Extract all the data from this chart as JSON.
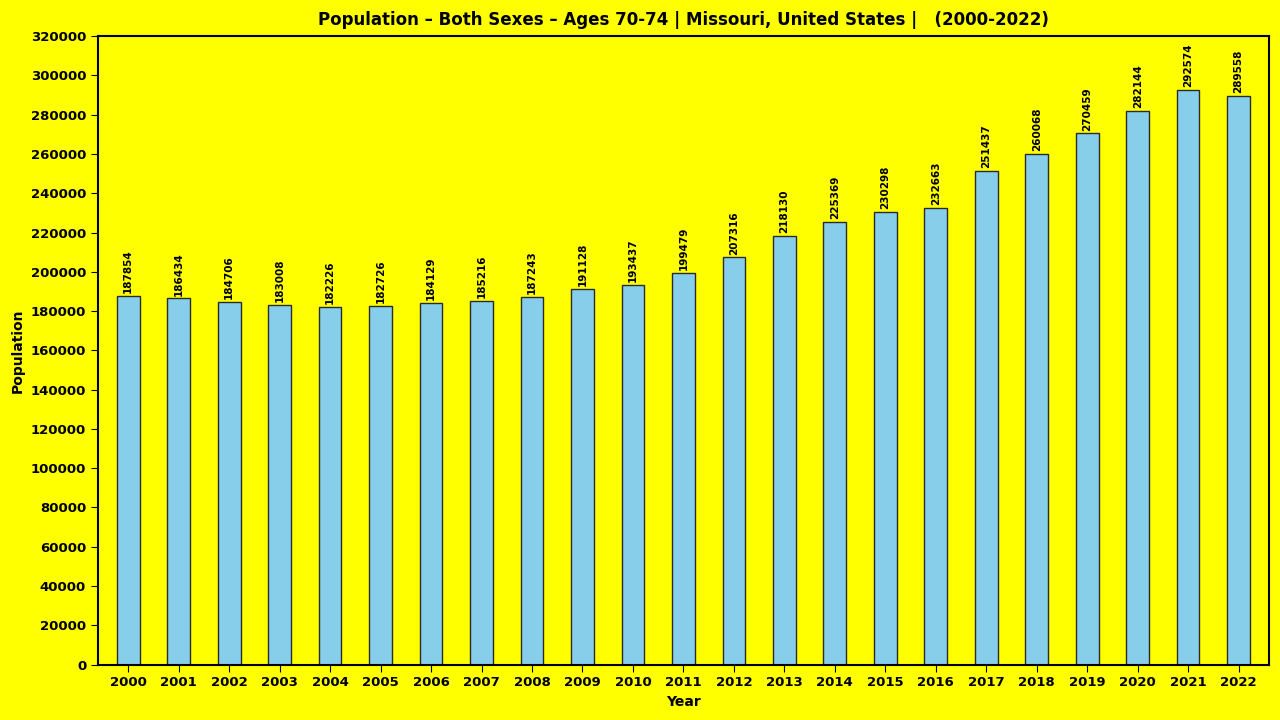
{
  "title": "Population – Both Sexes – Ages 70-74 | Missouri, United States |   (2000-2022)",
  "xlabel": "Year",
  "ylabel": "Population",
  "background_color": "#FFFF00",
  "bar_color": "#87CEEB",
  "bar_edgecolor": "#2a2a2a",
  "years": [
    2000,
    2001,
    2002,
    2003,
    2004,
    2005,
    2006,
    2007,
    2008,
    2009,
    2010,
    2011,
    2012,
    2013,
    2014,
    2015,
    2016,
    2017,
    2018,
    2019,
    2020,
    2021,
    2022
  ],
  "values": [
    187854,
    186434,
    184706,
    183008,
    182226,
    182726,
    184129,
    185216,
    187243,
    191128,
    193437,
    199479,
    207316,
    218130,
    225369,
    230298,
    232663,
    251437,
    260068,
    270459,
    282144,
    292574,
    289558
  ],
  "ylim": [
    0,
    320000
  ],
  "yticks": [
    0,
    20000,
    40000,
    60000,
    80000,
    100000,
    120000,
    140000,
    160000,
    180000,
    200000,
    220000,
    240000,
    260000,
    280000,
    300000,
    320000
  ],
  "title_fontsize": 12,
  "axis_label_fontsize": 10,
  "tick_fontsize": 9.5,
  "bar_label_fontsize": 7.5,
  "bar_width": 0.45
}
